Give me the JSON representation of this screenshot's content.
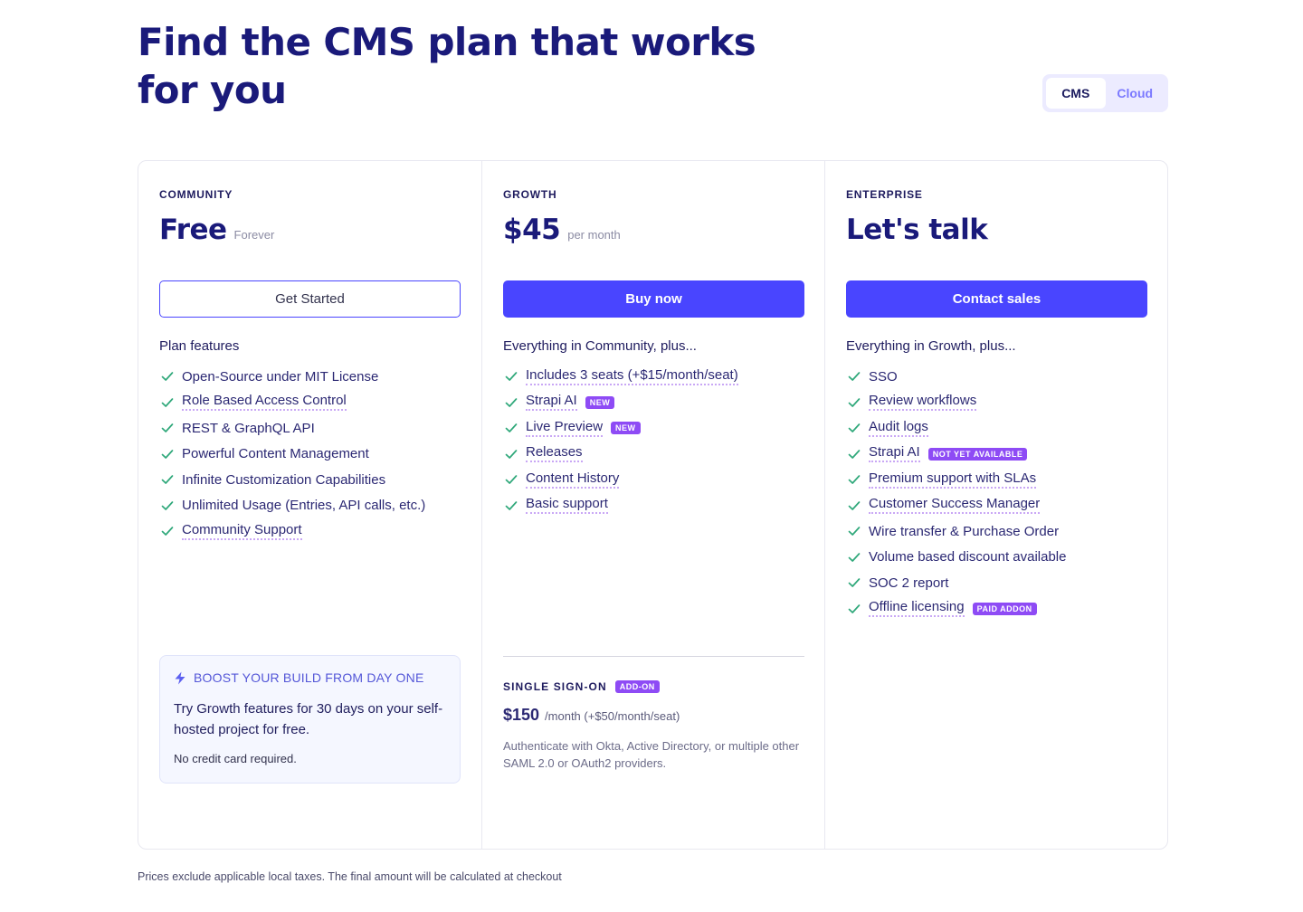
{
  "page": {
    "title": "Find the CMS plan that works for you"
  },
  "toggle": {
    "options": [
      "CMS",
      "Cloud"
    ],
    "selected": "CMS"
  },
  "plans": [
    {
      "tier": "COMMUNITY",
      "price": "Free",
      "price_note": "Forever",
      "cta": "Get Started",
      "features_heading": "Plan features",
      "features": [
        {
          "label": "Open-Source under MIT License",
          "dotted": false
        },
        {
          "label": "Role Based Access Control",
          "dotted": true
        },
        {
          "label": "REST & GraphQL API",
          "dotted": false
        },
        {
          "label": "Powerful Content Management",
          "dotted": false
        },
        {
          "label": "Infinite Customization Capabilities",
          "dotted": false
        },
        {
          "label": "Unlimited Usage (Entries, API calls, etc.)",
          "dotted": false
        },
        {
          "label": "Community Support",
          "dotted": true
        }
      ],
      "boost": {
        "heading": "BOOST YOUR BUILD FROM DAY ONE",
        "text": "Try Growth features for 30 days on your self-hosted project for free.",
        "note": "No credit card required."
      }
    },
    {
      "tier": "GROWTH",
      "price": "$45",
      "price_note": "per month",
      "cta": "Buy now",
      "features_heading": "Everything in Community, plus...",
      "features": [
        {
          "label": "Includes 3 seats (+$15/month/seat)",
          "dotted": true
        },
        {
          "label": "Strapi AI",
          "dotted": true,
          "badge": "NEW"
        },
        {
          "label": "Live Preview",
          "dotted": true,
          "badge": "NEW"
        },
        {
          "label": "Releases",
          "dotted": true
        },
        {
          "label": "Content History",
          "dotted": true
        },
        {
          "label": "Basic support",
          "dotted": true
        }
      ],
      "addon": {
        "heading": "SINGLE SIGN-ON",
        "badge": "ADD-ON",
        "price": "$150",
        "unit": "/month (+$50/month/seat)",
        "description": "Authenticate with Okta, Active Directory, or multiple other SAML 2.0 or OAuth2 providers."
      }
    },
    {
      "tier": "ENTERPRISE",
      "price": "Let's talk",
      "price_note": "",
      "cta": "Contact sales",
      "features_heading": "Everything in Growth, plus...",
      "features": [
        {
          "label": "SSO",
          "dotted": false
        },
        {
          "label": "Review workflows",
          "dotted": true
        },
        {
          "label": "Audit logs",
          "dotted": true
        },
        {
          "label": "Strapi AI",
          "dotted": true,
          "badge": "NOT YET AVAILABLE"
        },
        {
          "label": "Premium support with SLAs",
          "dotted": true
        },
        {
          "label": "Customer Success Manager",
          "dotted": true
        },
        {
          "label": "Wire transfer & Purchase Order",
          "dotted": false
        },
        {
          "label": "Volume based discount available",
          "dotted": false
        },
        {
          "label": "SOC 2 report",
          "dotted": false
        },
        {
          "label": "Offline licensing",
          "dotted": true,
          "badge": "PAID ADDON"
        }
      ]
    }
  ],
  "footnote": "Prices exclude applicable local taxes. The final amount will be calculated at checkout",
  "colors": {
    "primary": "#4945ff",
    "heading": "#1a1a7a",
    "check": "#2fa87a",
    "badge": "#8e4bf5"
  },
  "icons": {
    "check": "check-icon",
    "boost": "lightning-bolt-icon"
  }
}
